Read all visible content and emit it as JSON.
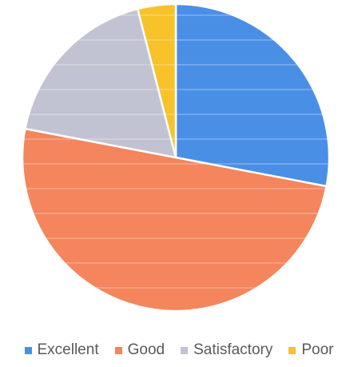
{
  "chart_data": {
    "type": "pie",
    "title": "",
    "categories": [
      "Excellent",
      "Good",
      "Satisfactory",
      "Poor"
    ],
    "values": [
      28,
      50,
      18,
      4
    ],
    "colors": [
      "#4a8fe6",
      "#f4855c",
      "#c2c3d2",
      "#f7c22a"
    ],
    "start": "12 o'clock, clockwise",
    "legend_position": "bottom"
  }
}
